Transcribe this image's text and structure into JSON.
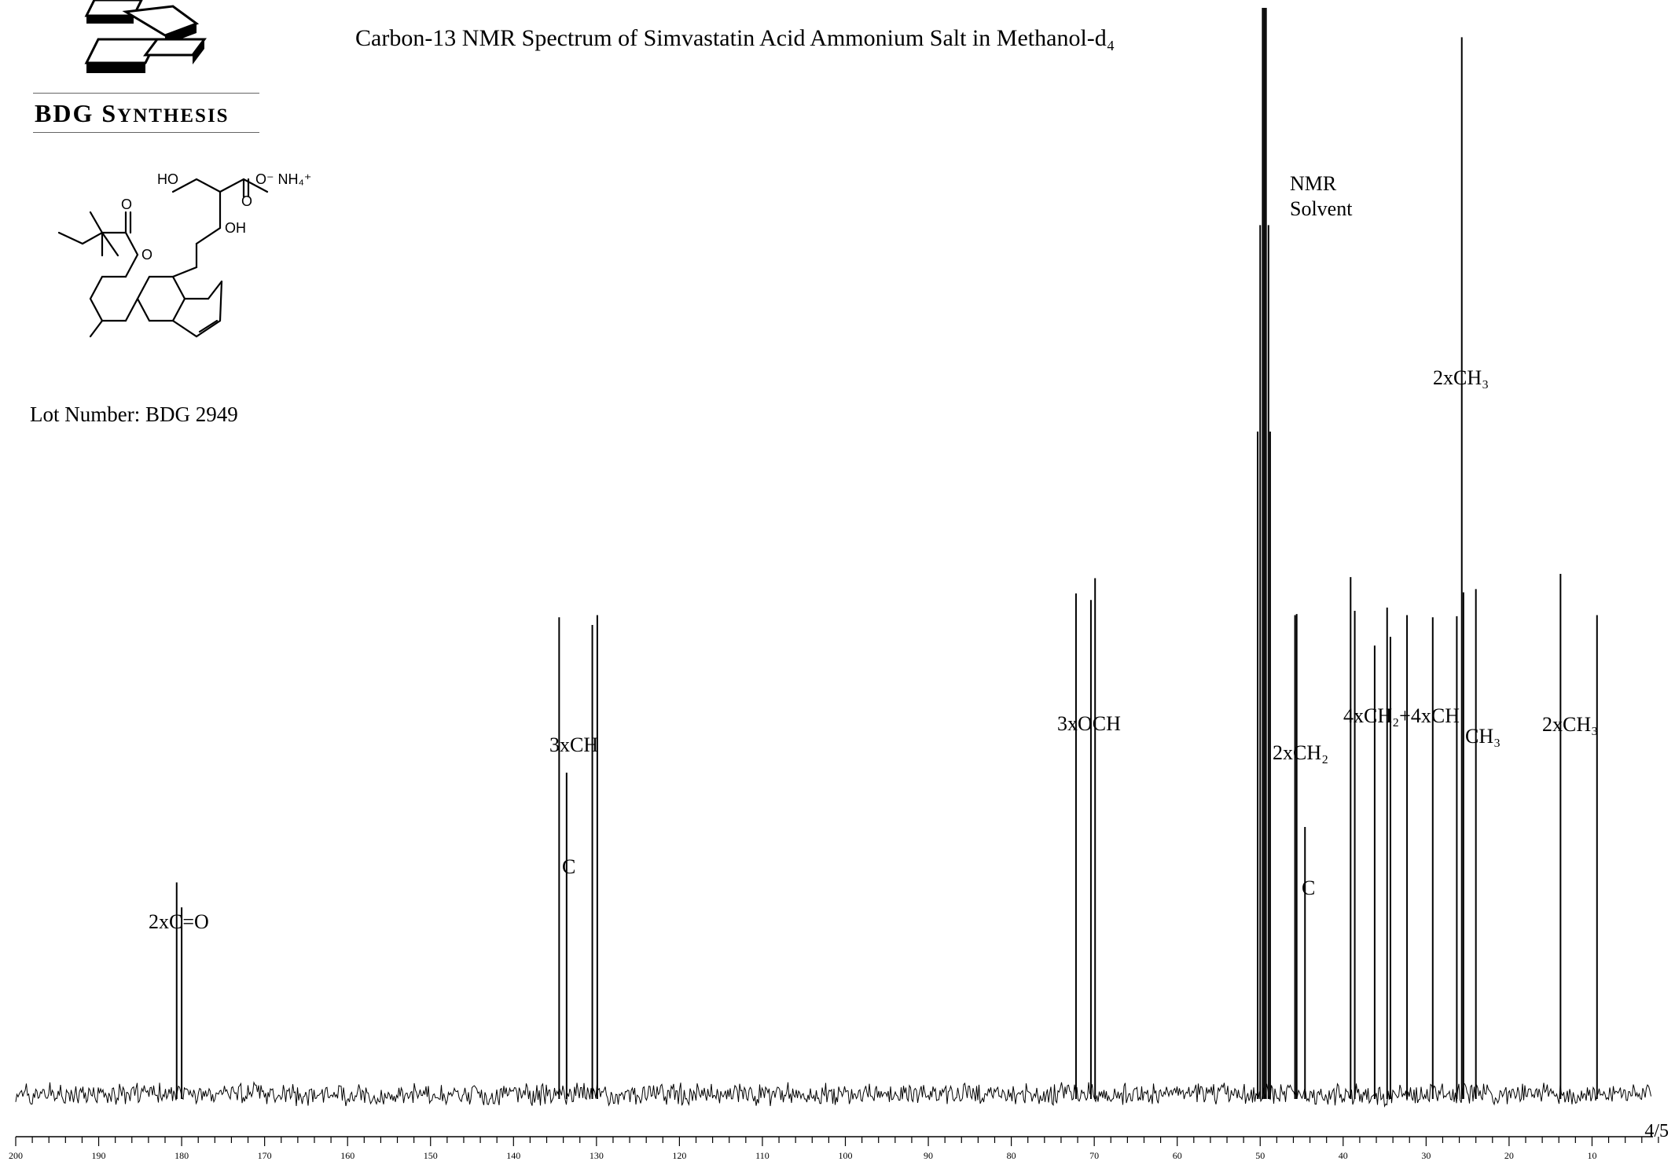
{
  "header": {
    "brand": "BDG SYNTHESIS",
    "brand_initials": "BDG",
    "brand_first": "S",
    "brand_rest": "YNTHESIS",
    "lot_number": "Lot Number: BDG 2949",
    "page_number": "4/5"
  },
  "structure": {
    "labels": [
      "HO",
      "O⁻ NH₄⁺",
      "O",
      "OH",
      "O",
      "O"
    ]
  },
  "chart_data": {
    "type": "line",
    "title": "Carbon-13 NMR Spectrum of Simvastatin Acid Ammonium Salt in Methanol-d₄",
    "xlabel": "",
    "ylabel": "",
    "x_reversed": true,
    "xlim": [
      200,
      0
    ],
    "x_ticks": [
      200,
      190,
      180,
      170,
      160,
      150,
      140,
      130,
      120,
      110,
      100,
      90,
      80,
      70,
      60,
      50,
      40,
      30,
      20,
      10
    ],
    "baseline_noise": true,
    "series": [
      {
        "peaks": [
          {
            "ppm": 180.6,
            "height": 0.195
          },
          {
            "ppm": 180.0,
            "height": 0.172
          },
          {
            "ppm": 134.5,
            "height": 0.439
          },
          {
            "ppm": 133.6,
            "height": 0.296
          },
          {
            "ppm": 130.5,
            "height": 0.432
          },
          {
            "ppm": 129.9,
            "height": 0.441
          },
          {
            "ppm": 72.2,
            "height": 0.461
          },
          {
            "ppm": 70.4,
            "height": 0.455
          },
          {
            "ppm": 69.9,
            "height": 0.475
          },
          {
            "ppm": 50.3,
            "height": 0.61
          },
          {
            "ppm": 50.0,
            "height": 0.8
          },
          {
            "ppm": 49.7,
            "height": 1.0
          },
          {
            "ppm": 49.5,
            "height": 1.0
          },
          {
            "ppm": 49.3,
            "height": 1.0
          },
          {
            "ppm": 49.0,
            "height": 0.8
          },
          {
            "ppm": 48.8,
            "height": 0.61
          },
          {
            "ppm": 45.8,
            "height": 0.441
          },
          {
            "ppm": 45.6,
            "height": 0.442
          },
          {
            "ppm": 44.6,
            "height": 0.246
          },
          {
            "ppm": 39.1,
            "height": 0.476
          },
          {
            "ppm": 38.6,
            "height": 0.445
          },
          {
            "ppm": 36.2,
            "height": 0.413
          },
          {
            "ppm": 34.7,
            "height": 0.448
          },
          {
            "ppm": 34.3,
            "height": 0.421
          },
          {
            "ppm": 32.3,
            "height": 0.441
          },
          {
            "ppm": 29.2,
            "height": 0.439
          },
          {
            "ppm": 26.3,
            "height": 0.44
          },
          {
            "ppm": 25.7,
            "height": 0.973
          },
          {
            "ppm": 25.5,
            "height": 0.462
          },
          {
            "ppm": 24.0,
            "height": 0.465
          },
          {
            "ppm": 13.8,
            "height": 0.479
          },
          {
            "ppm": 9.4,
            "height": 0.441
          }
        ]
      }
    ],
    "annotations": [
      {
        "text": "2xC=O",
        "ppm": 180.3
      },
      {
        "text": "3xCH",
        "ppm": 132.1
      },
      {
        "text": "C",
        "ppm": 133.6
      },
      {
        "text": "3xOCH",
        "ppm": 71.0
      },
      {
        "text": "NMR",
        "ppm": 46.1
      },
      {
        "text": "Solvent",
        "ppm": 46.1
      },
      {
        "text": "2xCH₂",
        "ppm": 45.2
      },
      {
        "text": "C",
        "ppm": 44.6
      },
      {
        "text": "4xCH₂+4xCH",
        "ppm": 32.5
      },
      {
        "text": "CH₃",
        "ppm": 23.8
      },
      {
        "text": "2xCH₃",
        "ppm": 25.7
      },
      {
        "text": "2xCH₃",
        "ppm": 12.0
      }
    ]
  }
}
